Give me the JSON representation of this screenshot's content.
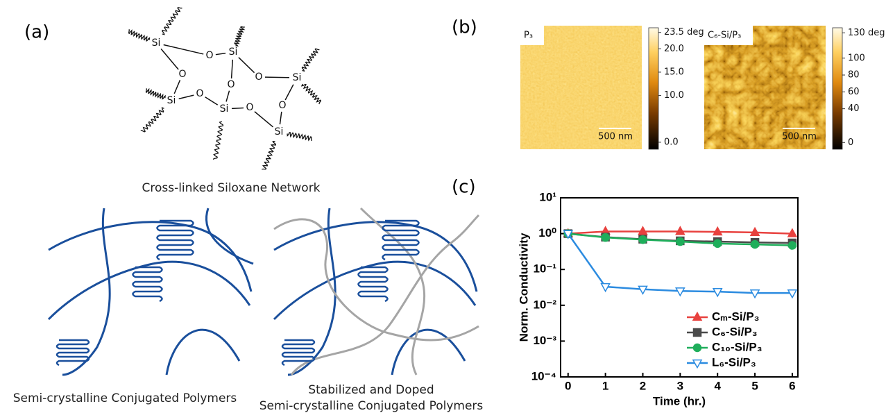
{
  "panel_labels": [
    "(a)",
    "(b)",
    "(c)"
  ],
  "siloxane": {
    "atoms": [
      "Si",
      "Si",
      "Si",
      "Si",
      "Si",
      "Si",
      "O",
      "O",
      "O",
      "O",
      "O",
      "O",
      "O"
    ],
    "caption": "Cross-linked Siloxane Network"
  },
  "polymers": {
    "left_caption": "Semi-crystalline Conjugated Polymers",
    "right_caption": [
      "Stabilized and Doped",
      "Semi-crystalline Conjugated Polymers"
    ]
  },
  "afm": [
    {
      "label": "P₃",
      "scale_bar": "500 nm",
      "colorbar": {
        "lim": [
          -1.5,
          24.5
        ],
        "ticks": [
          {
            "value": 23.5,
            "label": "23.5 deg"
          },
          {
            "value": 20,
            "label": "20.0"
          },
          {
            "value": 15,
            "label": "15.0"
          },
          {
            "value": 10,
            "label": "10.0"
          },
          {
            "value": 0,
            "label": "0.0"
          }
        ]
      }
    },
    {
      "label": "C₆-Si/P₃",
      "scale_bar": "500 nm",
      "colorbar": {
        "lim": [
          -8,
          136
        ],
        "ticks": [
          {
            "value": 130,
            "label": "130 deg"
          },
          100,
          80,
          60,
          40,
          0
        ]
      }
    }
  ],
  "chart_data": {
    "type": "line",
    "x_label": "Time (hr.)",
    "y_label": "Norm. Conductivity",
    "x": [
      0,
      1,
      2,
      3,
      4,
      5,
      6
    ],
    "xlim": [
      -0.2,
      6.15
    ],
    "xticks": [
      0,
      1,
      2,
      3,
      4,
      5,
      6
    ],
    "ylim": [
      0.0001,
      10
    ],
    "y_scale": "log",
    "yticks": [
      {
        "value": 10,
        "label": "10¹"
      },
      {
        "value": 1,
        "label": "10⁰"
      },
      {
        "value": 0.1,
        "label": "10⁻¹"
      },
      {
        "value": 0.01,
        "label": "10⁻²"
      },
      {
        "value": 0.001,
        "label": "10⁻³"
      },
      {
        "value": 0.0001,
        "label": "10⁻⁴"
      }
    ],
    "legend": "lower right",
    "series": [
      {
        "name": "Cₘ-Si/P₃",
        "color": "#e8413e",
        "marker": "triangle-up",
        "hollow": false,
        "values": [
          1,
          1.15,
          1.15,
          1.15,
          1.12,
          1.08,
          1.0
        ]
      },
      {
        "name": "C₆-Si/P₃",
        "color": "#4a4a4a",
        "marker": "square",
        "hollow": false,
        "values": [
          1,
          0.8,
          0.7,
          0.63,
          0.6,
          0.57,
          0.55
        ]
      },
      {
        "name": "C₁₀-Si/P₃",
        "color": "#1fae5b",
        "marker": "circle",
        "hollow": false,
        "values": [
          1,
          0.78,
          0.68,
          0.6,
          0.53,
          0.5,
          0.47
        ]
      },
      {
        "name": "L₆-Si/P₃",
        "color": "#2b8be0",
        "marker": "triangle-down",
        "hollow": true,
        "values": [
          1,
          0.033,
          0.028,
          0.025,
          0.024,
          0.022,
          0.022
        ]
      }
    ]
  }
}
